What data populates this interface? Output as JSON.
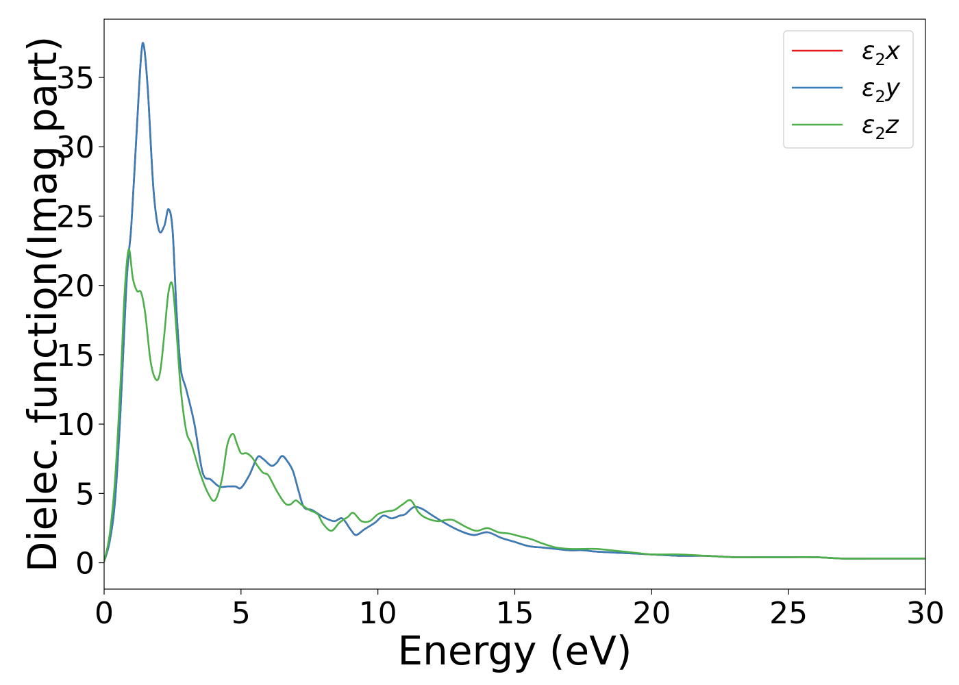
{
  "chart_data": {
    "type": "line",
    "title": "",
    "xlabel": "Energy (eV)",
    "ylabel": "Dielec. function(Imag part)",
    "xlim": [
      0,
      30
    ],
    "ylim": [
      -1.9,
      39.2
    ],
    "xticks": [
      0,
      5,
      10,
      15,
      20,
      25,
      30
    ],
    "yticks": [
      0,
      5,
      10,
      15,
      20,
      25,
      30,
      35
    ],
    "xtick_labels": [
      "0",
      "5",
      "10",
      "15",
      "20",
      "25",
      "30"
    ],
    "ytick_labels": [
      "0",
      "5",
      "10",
      "15",
      "20",
      "25",
      "30",
      "35"
    ],
    "grid": false,
    "legend": {
      "position": "top-right",
      "entries": [
        {
          "label": "ε₂x",
          "base": "ε",
          "sub": "2",
          "suffix": "x",
          "color": "#e41a1c"
        },
        {
          "label": "ε₂y",
          "base": "ε",
          "sub": "2",
          "suffix": "y",
          "color": "#377eb8"
        },
        {
          "label": "ε₂z",
          "base": "ε",
          "sub": "2",
          "suffix": "z",
          "color": "#4daf4a"
        }
      ]
    },
    "series": [
      {
        "name": "ε₂x",
        "color": "#e41a1c",
        "x": [
          0,
          0.2,
          0.4,
          0.6,
          0.8,
          0.9,
          1.0,
          1.2,
          1.35,
          1.45,
          1.6,
          1.8,
          2.0,
          2.2,
          2.35,
          2.5,
          2.65,
          2.8,
          3.0,
          3.3,
          3.6,
          3.9,
          4.2,
          4.5,
          4.8,
          5.0,
          5.3,
          5.6,
          5.8,
          6.1,
          6.3,
          6.5,
          6.7,
          6.9,
          7.1,
          7.3,
          7.6,
          8.0,
          8.4,
          8.7,
          9.0,
          9.2,
          9.5,
          9.9,
          10.2,
          10.5,
          10.8,
          11.0,
          11.3,
          11.6,
          12.0,
          12.5,
          13.0,
          13.5,
          14.0,
          14.5,
          15.0,
          15.5,
          16.0,
          16.5,
          17.0,
          17.5,
          18.0,
          19.0,
          20.0,
          21.0,
          22.0,
          23.0,
          24.0,
          25.0,
          26.0,
          27.0,
          28.0,
          29.0,
          30.0
        ],
        "y": [
          0.1,
          1.5,
          4.5,
          11.0,
          19.5,
          22.3,
          24.5,
          31.5,
          36.5,
          37.3,
          34.0,
          27.0,
          24.0,
          24.3,
          25.5,
          24.0,
          18.0,
          14.0,
          12.5,
          10.0,
          6.5,
          6.0,
          5.5,
          5.5,
          5.5,
          5.4,
          6.3,
          7.6,
          7.5,
          7.0,
          7.2,
          7.7,
          7.3,
          6.6,
          5.2,
          4.0,
          3.8,
          3.3,
          3.0,
          3.2,
          2.4,
          2.0,
          2.4,
          2.9,
          3.4,
          3.2,
          3.4,
          3.5,
          4.0,
          3.9,
          3.4,
          2.8,
          2.3,
          2.0,
          2.2,
          1.8,
          1.5,
          1.2,
          1.1,
          1.0,
          0.9,
          0.9,
          0.8,
          0.7,
          0.6,
          0.5,
          0.5,
          0.4,
          0.4,
          0.4,
          0.4,
          0.3,
          0.3,
          0.3,
          0.3
        ]
      },
      {
        "name": "ε₂y",
        "color": "#377eb8",
        "x": [
          0,
          0.2,
          0.4,
          0.6,
          0.8,
          0.9,
          1.0,
          1.2,
          1.35,
          1.45,
          1.6,
          1.8,
          2.0,
          2.2,
          2.35,
          2.5,
          2.65,
          2.8,
          3.0,
          3.3,
          3.6,
          3.9,
          4.2,
          4.5,
          4.8,
          5.0,
          5.3,
          5.6,
          5.8,
          6.1,
          6.3,
          6.5,
          6.7,
          6.9,
          7.1,
          7.3,
          7.6,
          8.0,
          8.4,
          8.7,
          9.0,
          9.2,
          9.5,
          9.9,
          10.2,
          10.5,
          10.8,
          11.0,
          11.3,
          11.6,
          12.0,
          12.5,
          13.0,
          13.5,
          14.0,
          14.5,
          15.0,
          15.5,
          16.0,
          16.5,
          17.0,
          17.5,
          18.0,
          19.0,
          20.0,
          21.0,
          22.0,
          23.0,
          24.0,
          25.0,
          26.0,
          27.0,
          28.0,
          29.0,
          30.0
        ],
        "y": [
          0.1,
          1.5,
          4.5,
          11.0,
          19.5,
          22.3,
          24.5,
          31.5,
          36.5,
          37.3,
          34.0,
          27.0,
          24.0,
          24.3,
          25.5,
          24.0,
          18.0,
          14.0,
          12.5,
          10.0,
          6.5,
          6.0,
          5.5,
          5.5,
          5.5,
          5.4,
          6.3,
          7.6,
          7.5,
          7.0,
          7.2,
          7.7,
          7.3,
          6.6,
          5.2,
          4.0,
          3.8,
          3.3,
          3.0,
          3.2,
          2.4,
          2.0,
          2.4,
          2.9,
          3.4,
          3.2,
          3.4,
          3.5,
          4.0,
          3.9,
          3.4,
          2.8,
          2.3,
          2.0,
          2.2,
          1.8,
          1.5,
          1.2,
          1.1,
          1.0,
          0.9,
          0.9,
          0.8,
          0.7,
          0.6,
          0.5,
          0.5,
          0.4,
          0.4,
          0.4,
          0.4,
          0.3,
          0.3,
          0.3,
          0.3
        ]
      },
      {
        "name": "ε₂z",
        "color": "#4daf4a",
        "x": [
          0,
          0.2,
          0.4,
          0.6,
          0.75,
          0.9,
          1.05,
          1.2,
          1.35,
          1.5,
          1.7,
          1.9,
          2.05,
          2.2,
          2.35,
          2.5,
          2.65,
          2.8,
          3.0,
          3.2,
          3.5,
          3.8,
          4.05,
          4.3,
          4.5,
          4.7,
          4.85,
          5.0,
          5.2,
          5.4,
          5.6,
          5.8,
          6.0,
          6.3,
          6.6,
          6.8,
          7.0,
          7.2,
          7.5,
          7.8,
          8.0,
          8.3,
          8.6,
          8.9,
          9.1,
          9.4,
          9.7,
          10.0,
          10.3,
          10.6,
          10.9,
          11.2,
          11.5,
          11.8,
          12.2,
          12.7,
          13.2,
          13.6,
          14.0,
          14.4,
          14.8,
          15.2,
          15.6,
          16.0,
          16.5,
          17.0,
          17.5,
          18.0,
          18.5,
          19.0,
          19.5,
          20.0,
          21.0,
          22.0,
          23.0,
          24.0,
          25.0,
          26.0,
          27.0,
          28.0,
          29.0,
          30.0
        ],
        "y": [
          0.1,
          2.0,
          6.0,
          13.0,
          19.5,
          22.6,
          20.5,
          19.6,
          19.5,
          18.0,
          14.5,
          13.2,
          13.8,
          16.5,
          19.5,
          20.0,
          16.5,
          12.5,
          9.5,
          8.5,
          6.5,
          5.0,
          4.5,
          6.0,
          8.5,
          9.3,
          8.6,
          7.9,
          7.9,
          7.6,
          7.0,
          6.5,
          6.3,
          5.2,
          4.3,
          4.2,
          4.5,
          4.2,
          3.8,
          3.5,
          2.8,
          2.3,
          2.9,
          3.3,
          3.6,
          3.0,
          3.0,
          3.5,
          3.7,
          3.8,
          4.2,
          4.5,
          3.6,
          3.2,
          3.0,
          3.1,
          2.6,
          2.3,
          2.5,
          2.2,
          2.1,
          1.9,
          1.7,
          1.4,
          1.1,
          1.0,
          1.0,
          1.0,
          0.9,
          0.8,
          0.7,
          0.6,
          0.6,
          0.5,
          0.4,
          0.4,
          0.4,
          0.4,
          0.3,
          0.3,
          0.3,
          0.3
        ]
      }
    ]
  }
}
